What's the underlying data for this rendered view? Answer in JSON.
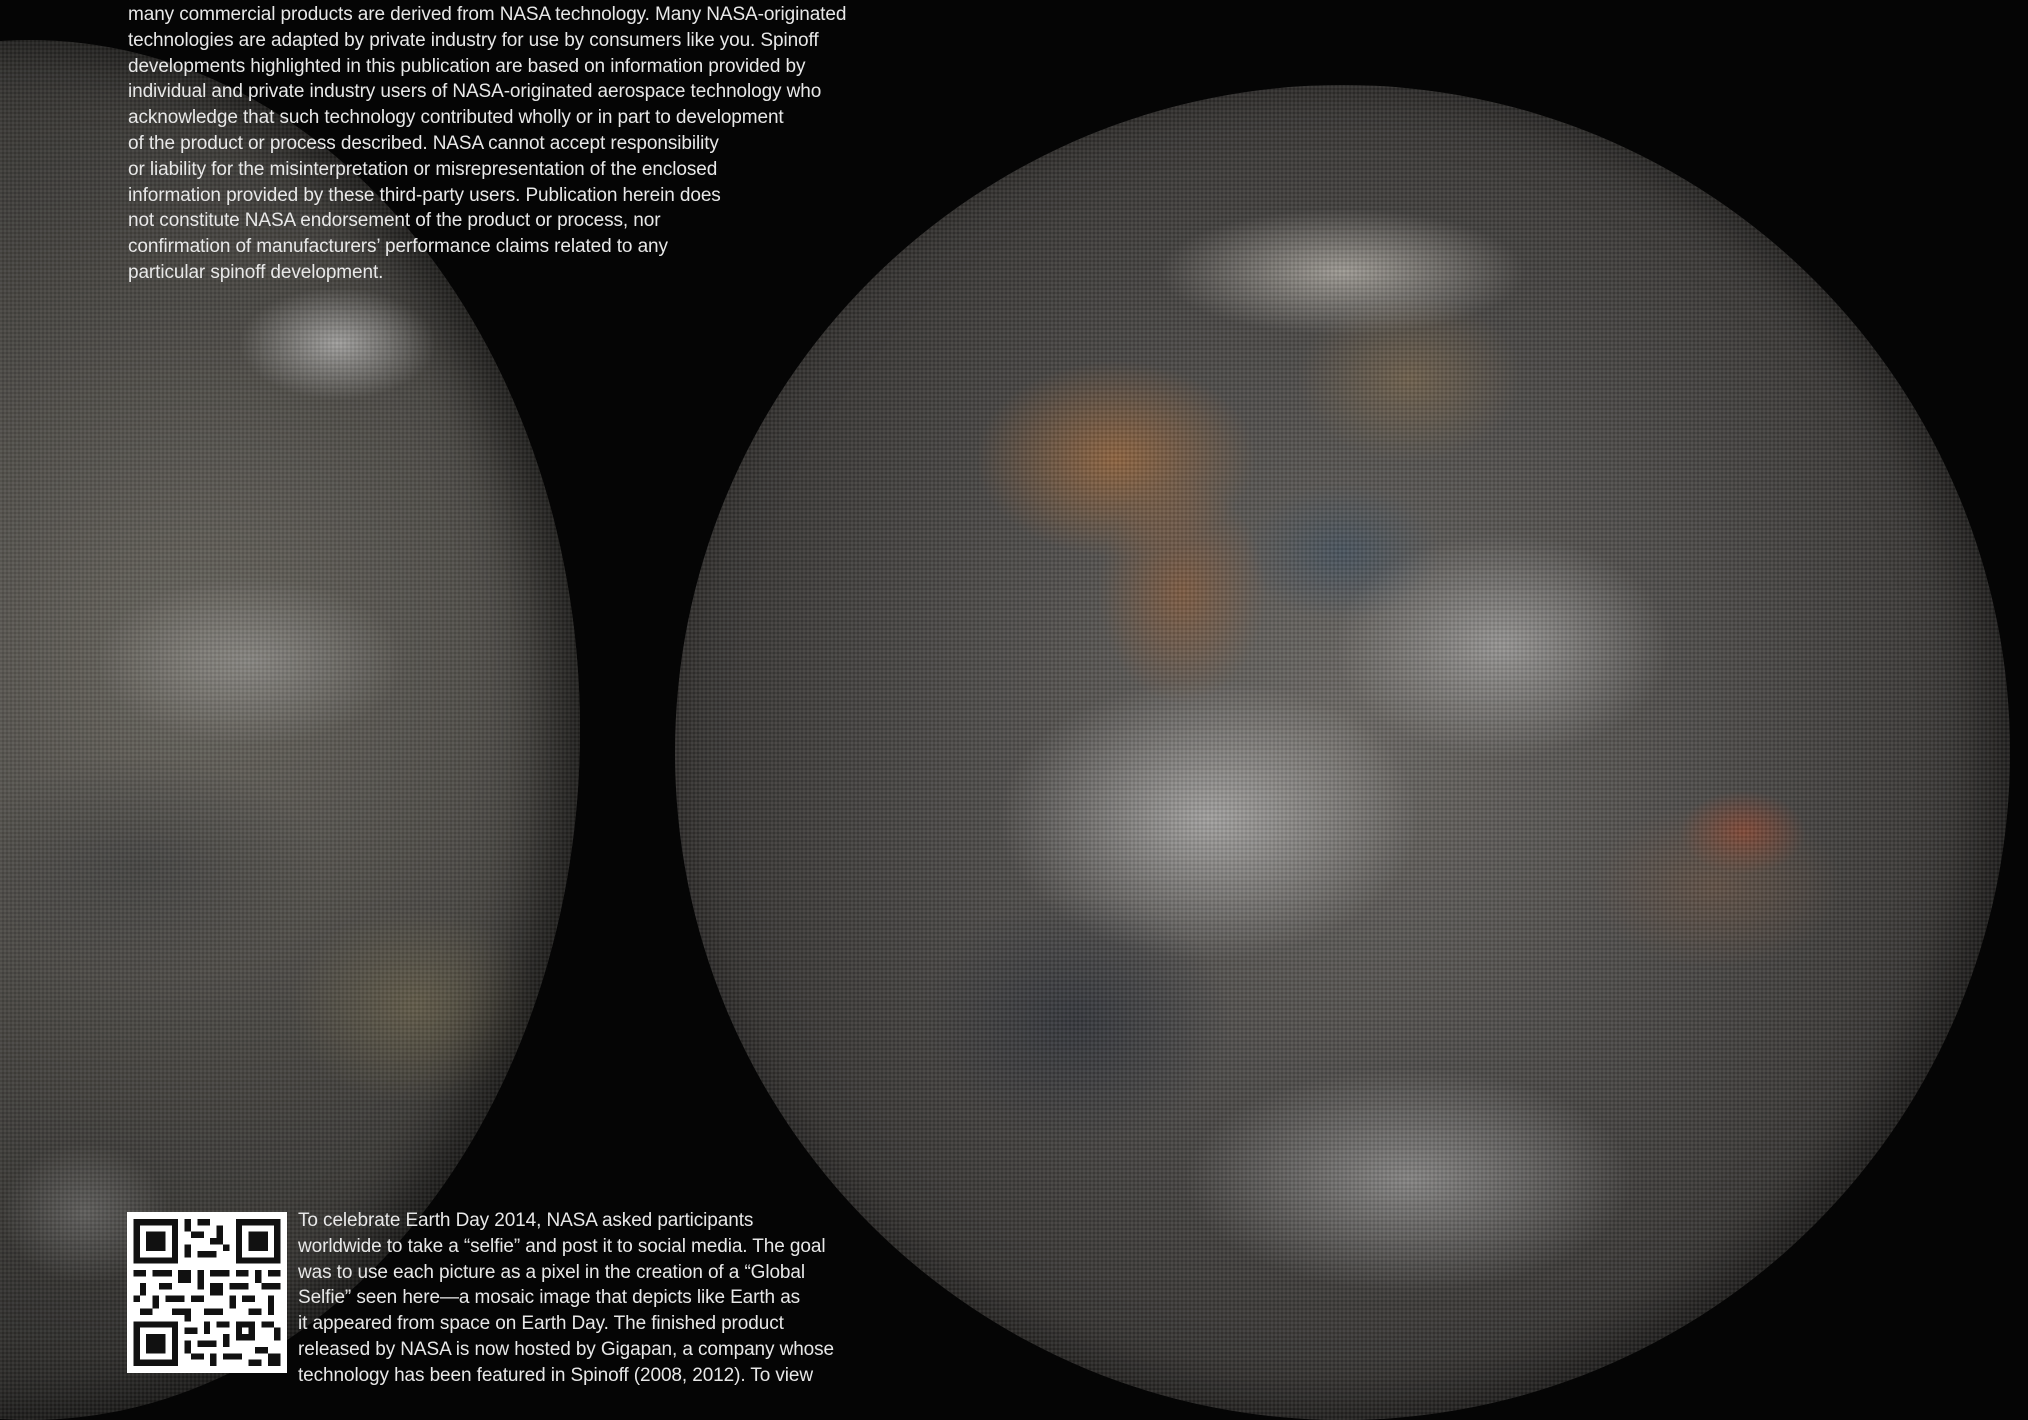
{
  "disclaimer": {
    "lines": [
      "many commercial products are derived from NASA technology. Many NASA-originated",
      "technologies are adapted by private industry for use by consumers like you. Spinoff",
      "developments highlighted in this publication are based on information provided by",
      "individual and private industry users of NASA-originated aerospace technology who",
      "acknowledge that such technology contributed wholly or in part to development",
      "of the product or process described. NASA cannot accept responsibility",
      "or liability for the misinterpretation or misrepresentation of the enclosed",
      "information provided by these third-party users. Publication herein does",
      "not constitute NASA endorsement of the product or process, nor",
      "confirmation of manufacturers’ performance claims related to any",
      "particular spinoff development."
    ]
  },
  "caption": {
    "lines": [
      "To celebrate Earth Day 2014, NASA asked participants",
      "worldwide to take a “selfie” and post it to social media. The goal",
      "was to use each picture as a pixel in the creation of a “Global",
      "Selfie” seen here—a mosaic image that depicts like Earth as",
      "it appeared from space on Earth Day. The finished product",
      "released by NASA is now hosted by Gigapan, a company whose",
      "technology has been featured in Spinoff (2008, 2012). To view"
    ]
  },
  "images": {
    "left_globe": "earth-mosaic-left",
    "right_globe": "earth-mosaic-right",
    "qr_code": "qr-code-icon"
  },
  "colors": {
    "background": "#050505",
    "text": "#e8e8e8"
  }
}
